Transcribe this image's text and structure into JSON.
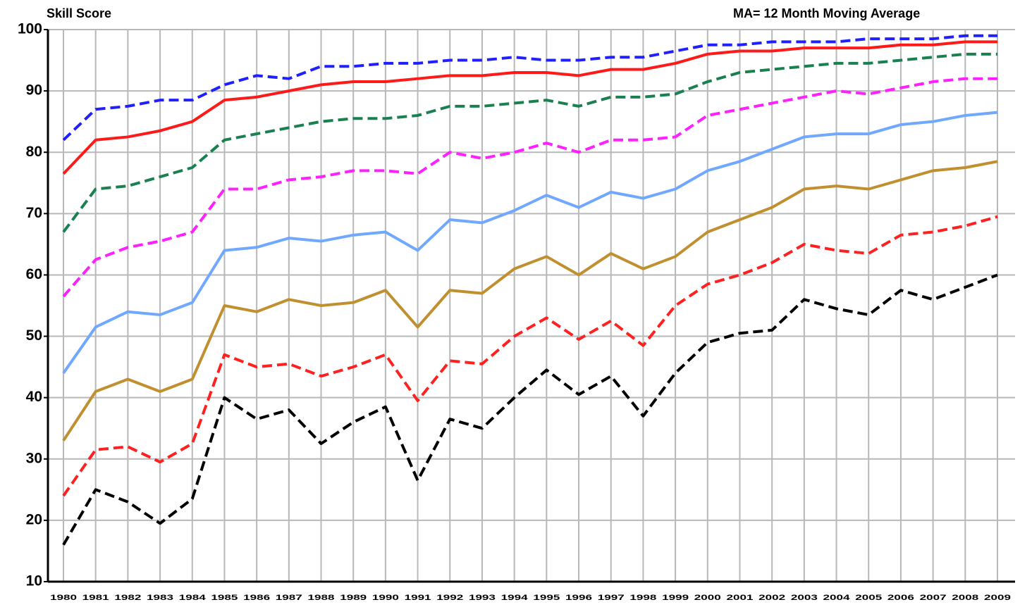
{
  "chart_data": {
    "type": "line",
    "title": "Skill Score",
    "subtitle": "MA= 12 Month   Moving Average",
    "categories": [
      "1980",
      "1981",
      "1982",
      "1983",
      "1984",
      "1985",
      "1986",
      "1987",
      "1988",
      "1989",
      "1990",
      "1991",
      "1992",
      "1993",
      "1994",
      "1995",
      "1996",
      "1997",
      "1998",
      "1999",
      "2000",
      "2001",
      "2002",
      "2003",
      "2004",
      "2005",
      "2006",
      "2007",
      "2008",
      "2009"
    ],
    "ylim": [
      10,
      100
    ],
    "yticks": [
      10,
      20,
      30,
      40,
      50,
      60,
      70,
      80,
      90,
      100
    ],
    "grid": true,
    "series": [
      {
        "color": "#2020ff",
        "dashed": true,
        "values": [
          82,
          87,
          87.5,
          88.5,
          88.5,
          91,
          92.5,
          92,
          94,
          94,
          94.5,
          94.5,
          95,
          95,
          95.5,
          95,
          95,
          95.5,
          95.5,
          96.5,
          97.5,
          97.5,
          98,
          98,
          98,
          98.5,
          98.5,
          98.5,
          99,
          99
        ]
      },
      {
        "color": "#ff1a1a",
        "dashed": false,
        "values": [
          76.5,
          82,
          82.5,
          83.5,
          85,
          88.5,
          89,
          90,
          91,
          91.5,
          91.5,
          92,
          92.5,
          92.5,
          93,
          93,
          92.5,
          93.5,
          93.5,
          94.5,
          96,
          96.5,
          96.5,
          97,
          97,
          97,
          97.5,
          97.5,
          98,
          98
        ]
      },
      {
        "color": "#1a8050",
        "dashed": true,
        "values": [
          67,
          74,
          74.5,
          76,
          77.5,
          82,
          83,
          84,
          85,
          85.5,
          85.5,
          86,
          87.5,
          87.5,
          88,
          88.5,
          87.5,
          89,
          89,
          89.5,
          91.5,
          93,
          93.5,
          94,
          94.5,
          94.5,
          95,
          95.5,
          96,
          96
        ]
      },
      {
        "color": "#ff20ff",
        "dashed": true,
        "values": [
          56.5,
          62.5,
          64.5,
          65.5,
          67,
          74,
          74,
          75.5,
          76,
          77,
          77,
          76.5,
          80,
          79,
          80,
          81.5,
          80,
          82,
          82,
          82.5,
          86,
          87,
          88,
          89,
          90,
          89.5,
          90.5,
          91.5,
          92,
          92
        ]
      },
      {
        "color": "#70a8ff",
        "dashed": false,
        "values": [
          44,
          51.5,
          54,
          53.5,
          55.5,
          64,
          64.5,
          66,
          65.5,
          66.5,
          67,
          64,
          69,
          68.5,
          70.5,
          73,
          71,
          73.5,
          72.5,
          74,
          77,
          78.5,
          80.5,
          82.5,
          83,
          83,
          84.5,
          85,
          86,
          86.5
        ]
      },
      {
        "color": "#c09030",
        "dashed": false,
        "values": [
          33,
          41,
          43,
          41,
          43,
          55,
          54,
          56,
          55,
          55.5,
          57.5,
          51.5,
          57.5,
          57,
          61,
          63,
          60,
          63.5,
          61,
          63,
          67,
          69,
          71,
          74,
          74.5,
          74,
          75.5,
          77,
          77.5,
          78.5
        ]
      },
      {
        "color": "#ff2020",
        "dashed": true,
        "values": [
          24,
          31.5,
          32,
          29.5,
          32.5,
          47,
          45,
          45.5,
          43.5,
          45,
          47,
          39.5,
          46,
          45.5,
          50,
          53,
          49.5,
          52.5,
          48.5,
          55,
          58.5,
          60,
          62,
          65,
          64,
          63.5,
          66.5,
          67,
          68,
          69.5
        ]
      },
      {
        "color": "#000000",
        "dashed": true,
        "values": [
          16,
          25,
          23,
          19.5,
          23.5,
          40,
          36.5,
          38,
          32.5,
          36,
          38.5,
          26.5,
          36.5,
          35,
          40,
          44.5,
          40.5,
          43.5,
          37,
          44,
          49,
          50.5,
          51,
          56,
          54.5,
          53.5,
          57.5,
          56,
          58,
          60
        ]
      }
    ]
  }
}
